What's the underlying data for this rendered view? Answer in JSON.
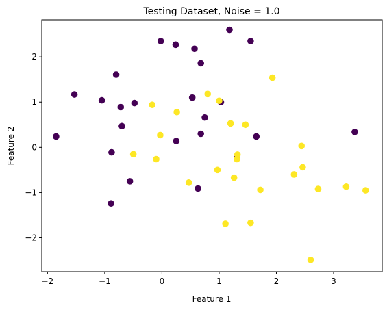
{
  "chart_data": {
    "type": "scatter",
    "title": "Testing Dataset, Noise = 1.0",
    "xlabel": "Feature 1",
    "ylabel": "Feature 2",
    "xlim": [
      -2.1,
      3.85
    ],
    "ylim": [
      -2.75,
      2.82
    ],
    "xticks": [
      -2,
      -1,
      0,
      1,
      2,
      3
    ],
    "yticks": [
      -2,
      -1,
      0,
      1,
      2
    ],
    "grid": false,
    "legend": "none",
    "series": [
      {
        "color": "#440154",
        "points": [
          [
            -1.85,
            0.24
          ],
          [
            -1.53,
            1.17
          ],
          [
            -1.05,
            1.04
          ],
          [
            -0.8,
            1.61
          ],
          [
            -0.72,
            0.89
          ],
          [
            -0.48,
            0.98
          ],
          [
            -0.7,
            0.47
          ],
          [
            -0.88,
            -0.11
          ],
          [
            -0.56,
            -0.75
          ],
          [
            -0.89,
            -1.24
          ],
          [
            -0.02,
            2.35
          ],
          [
            0.24,
            2.27
          ],
          [
            0.57,
            2.18
          ],
          [
            0.68,
            1.86
          ],
          [
            0.53,
            1.1
          ],
          [
            1.03,
            1.0
          ],
          [
            0.75,
            0.66
          ],
          [
            0.68,
            0.3
          ],
          [
            0.25,
            0.14
          ],
          [
            1.65,
            0.24
          ],
          [
            1.18,
            2.6
          ],
          [
            1.55,
            2.35
          ],
          [
            3.37,
            0.34
          ],
          [
            1.31,
            -0.24
          ],
          [
            0.63,
            -0.91
          ]
        ]
      },
      {
        "color": "#fde725",
        "points": [
          [
            -0.17,
            0.94
          ],
          [
            0.26,
            0.78
          ],
          [
            0.8,
            1.18
          ],
          [
            1.0,
            1.03
          ],
          [
            1.93,
            1.54
          ],
          [
            1.2,
            0.53
          ],
          [
            1.46,
            0.5
          ],
          [
            -0.03,
            0.27
          ],
          [
            -0.5,
            -0.15
          ],
          [
            -0.1,
            -0.26
          ],
          [
            1.32,
            -0.16
          ],
          [
            1.31,
            -0.26
          ],
          [
            0.97,
            -0.5
          ],
          [
            0.47,
            -0.78
          ],
          [
            1.26,
            -0.67
          ],
          [
            1.72,
            -0.94
          ],
          [
            2.44,
            0.03
          ],
          [
            2.46,
            -0.44
          ],
          [
            2.31,
            -0.6
          ],
          [
            2.73,
            -0.92
          ],
          [
            3.22,
            -0.87
          ],
          [
            3.56,
            -0.95
          ],
          [
            1.11,
            -1.69
          ],
          [
            1.55,
            -1.67
          ],
          [
            2.6,
            -2.49
          ]
        ]
      }
    ]
  }
}
